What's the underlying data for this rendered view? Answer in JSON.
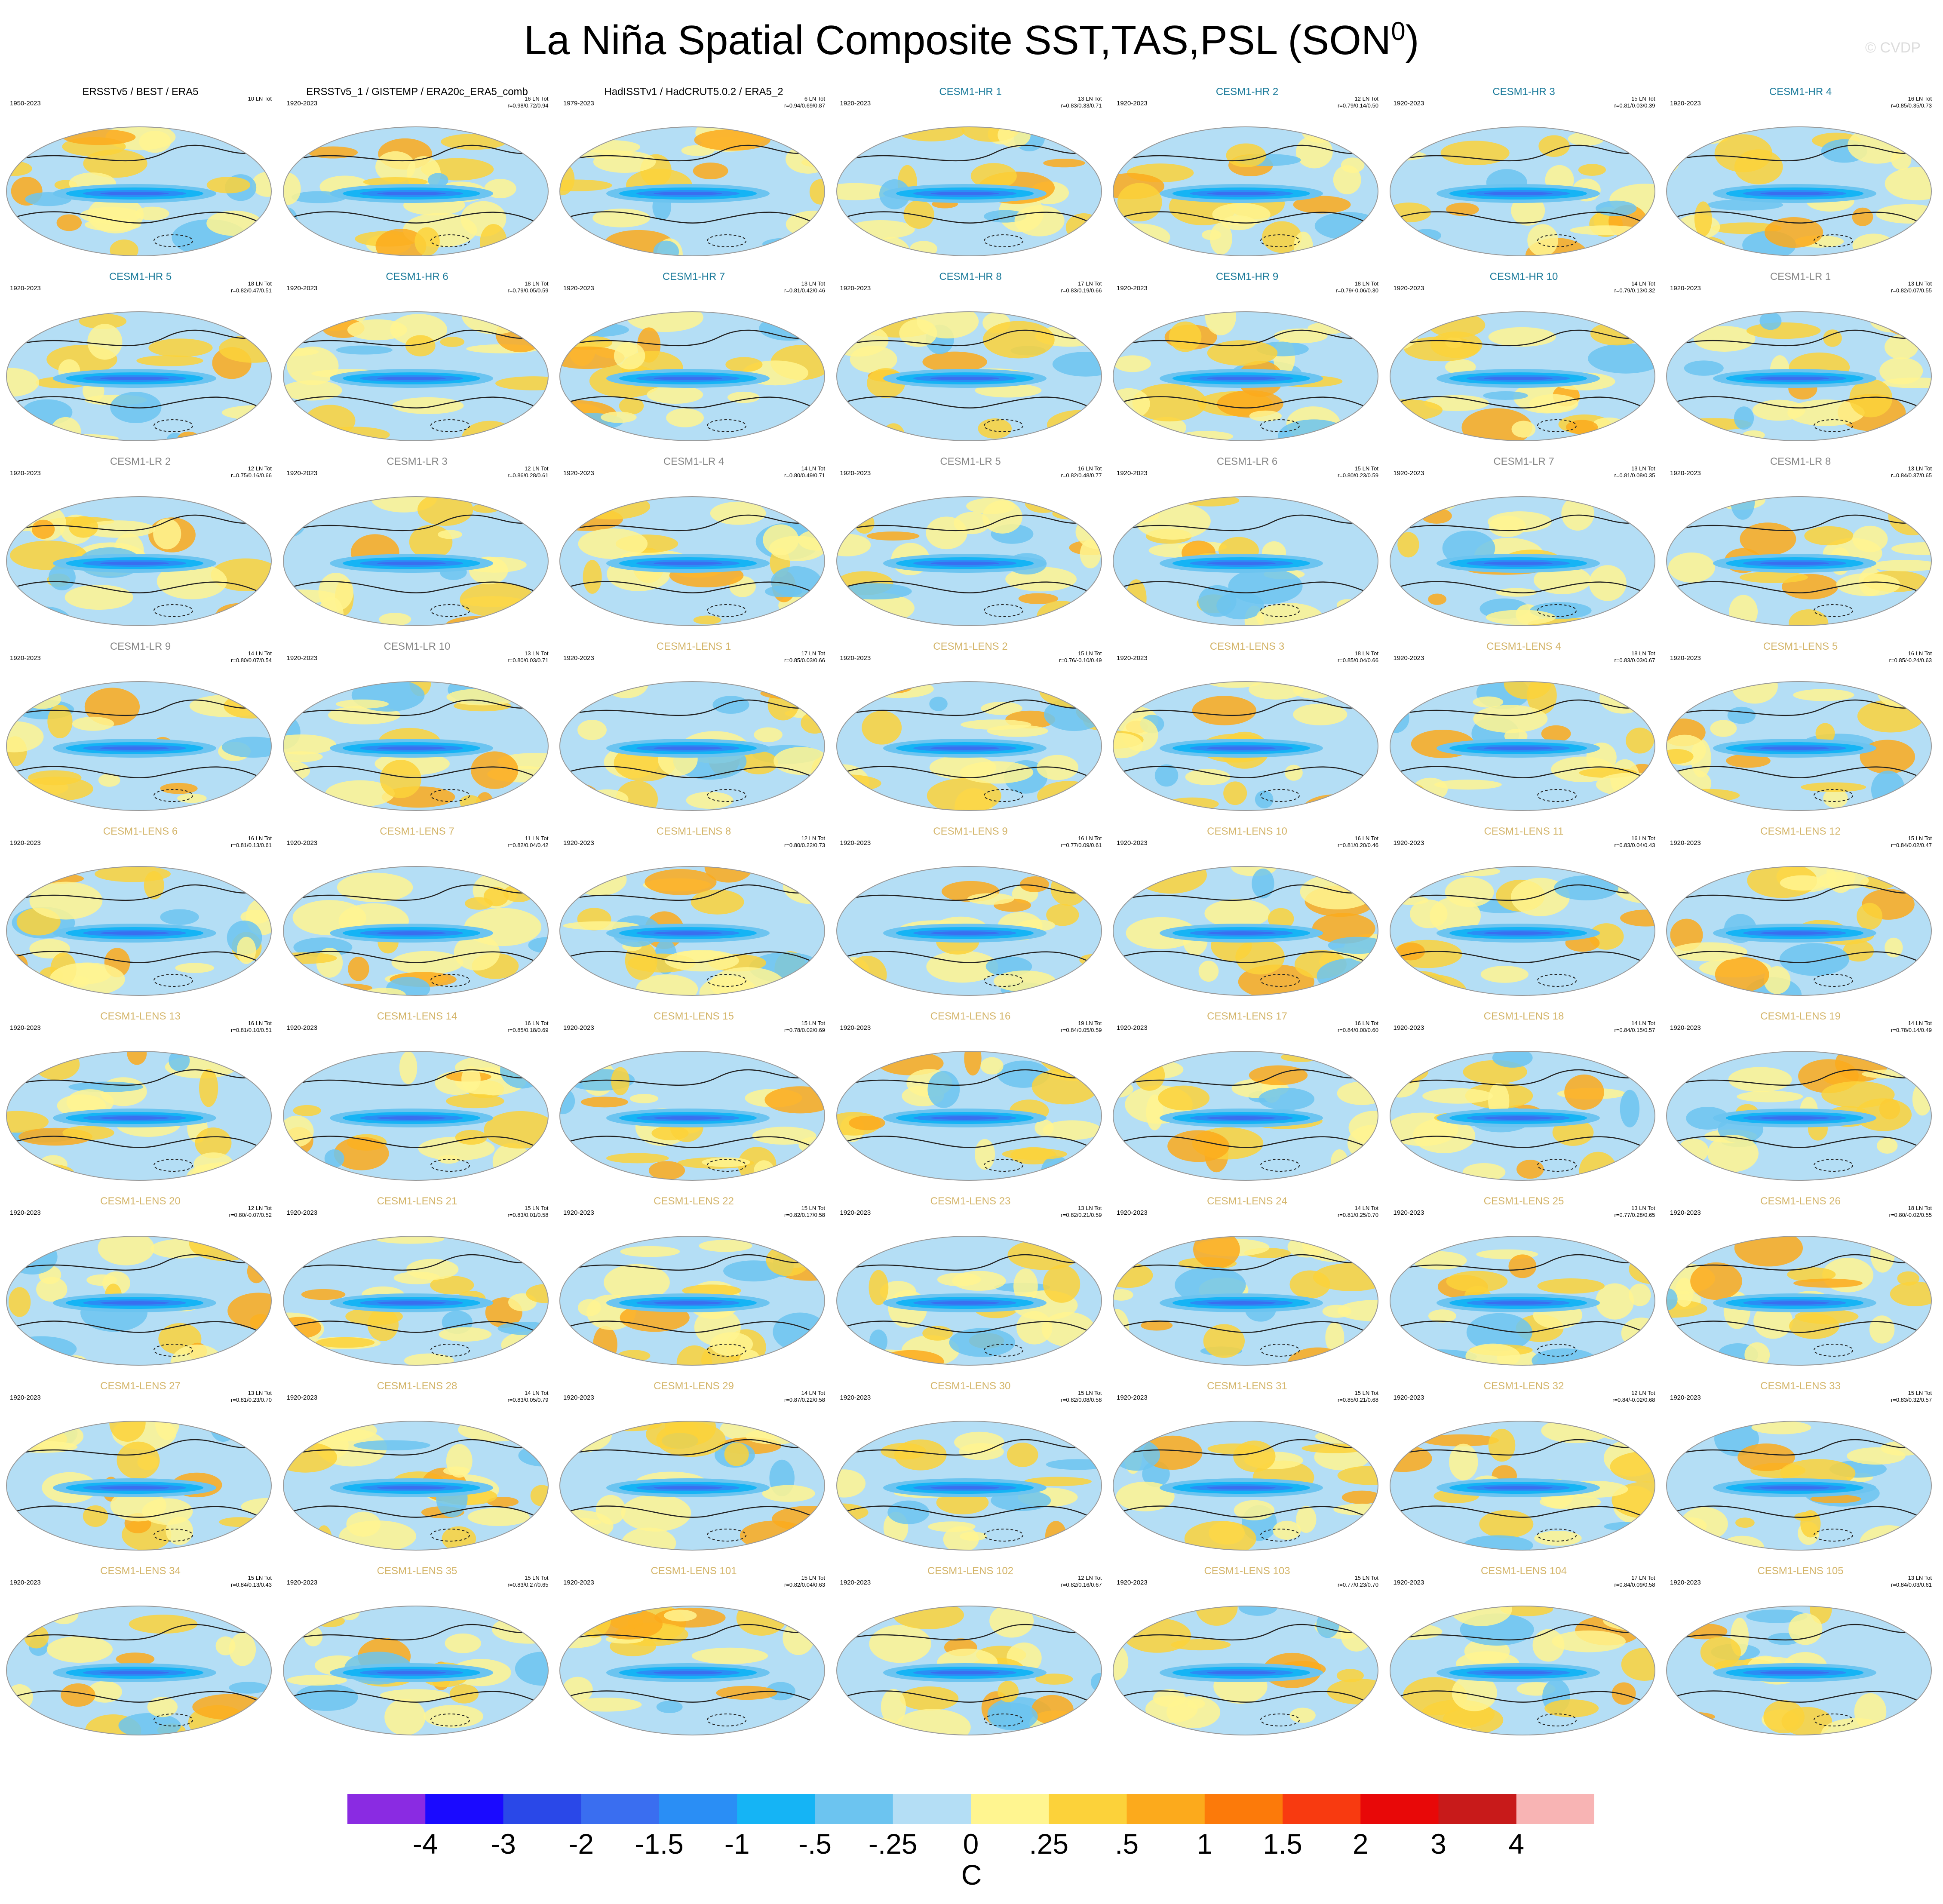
{
  "figure": {
    "title": "La Niña Spatial Composite SST,TAS,PSL (SON",
    "title_sup": "0",
    "title_close": ")",
    "copyright": "© CVDP",
    "units": "C"
  },
  "colors": {
    "obs_title": "#000000",
    "hr_title": "#1a7a9a",
    "lr_title": "#888888",
    "lens_title": "#d4b56a"
  },
  "colorbar": {
    "colors": [
      "#8a2be2",
      "#1a0aff",
      "#2a48e8",
      "#3a6ef0",
      "#2a8ef5",
      "#15b4f5",
      "#6cc4f0",
      "#b4def5",
      "#fff590",
      "#fcd23a",
      "#fcaa1c",
      "#fc7a0a",
      "#f83a10",
      "#e80808",
      "#c81a1a",
      "#f8b4b4"
    ],
    "labels": [
      "-4",
      "-3",
      "-2",
      "-1.5",
      "-1",
      "-.5",
      "-.25",
      "0",
      ".25",
      ".5",
      "1",
      "1.5",
      "2",
      "3",
      "4"
    ]
  },
  "panels": [
    {
      "title": "ERSSTv5 / BEST / ERA5",
      "years": "1950-2023",
      "stats": "10 LN Tot",
      "group": "obs"
    },
    {
      "title": "ERSSTv5_1 / GISTEMP / ERA20c_ERA5_comb",
      "years": "1920-2023",
      "stats": "16 LN Tot\nr=0.98/0.72/0.94",
      "group": "obs"
    },
    {
      "title": "HadISSTv1 / HadCRUT5.0.2 / ERA5_2",
      "years": "1979-2023",
      "stats": "6 LN Tot\nr=0.94/0.69/0.87",
      "group": "obs"
    },
    {
      "title": "CESM1-HR 1",
      "years": "1920-2023",
      "stats": "13 LN Tot\nr=0.83/0.33/0.71",
      "group": "hr"
    },
    {
      "title": "CESM1-HR 2",
      "years": "1920-2023",
      "stats": "12 LN Tot\nr=0.79/0.14/0.50",
      "group": "hr"
    },
    {
      "title": "CESM1-HR 3",
      "years": "1920-2023",
      "stats": "15 LN Tot\nr=0.81/0.03/0.39",
      "group": "hr"
    },
    {
      "title": "CESM1-HR 4",
      "years": "1920-2023",
      "stats": "16 LN Tot\nr=0.85/0.35/0.73",
      "group": "hr"
    },
    {
      "title": "CESM1-HR 5",
      "years": "1920-2023",
      "stats": "18 LN Tot\nr=0.82/0.47/0.51",
      "group": "hr"
    },
    {
      "title": "CESM1-HR 6",
      "years": "1920-2023",
      "stats": "18 LN Tot\nr=0.79/0.05/0.59",
      "group": "hr"
    },
    {
      "title": "CESM1-HR 7",
      "years": "1920-2023",
      "stats": "13 LN Tot\nr=0.81/0.42/0.46",
      "group": "hr"
    },
    {
      "title": "CESM1-HR 8",
      "years": "1920-2023",
      "stats": "17 LN Tot\nr=0.83/0.19/0.66",
      "group": "hr"
    },
    {
      "title": "CESM1-HR 9",
      "years": "1920-2023",
      "stats": "18 LN Tot\nr=0.79/-0.06/0.30",
      "group": "hr"
    },
    {
      "title": "CESM1-HR 10",
      "years": "1920-2023",
      "stats": "14 LN Tot\nr=0.79/0.13/0.32",
      "group": "hr"
    },
    {
      "title": "CESM1-LR 1",
      "years": "1920-2023",
      "stats": "13 LN Tot\nr=0.82/0.07/0.55",
      "group": "lr"
    },
    {
      "title": "CESM1-LR 2",
      "years": "1920-2023",
      "stats": "12 LN Tot\nr=0.75/0.16/0.66",
      "group": "lr"
    },
    {
      "title": "CESM1-LR 3",
      "years": "1920-2023",
      "stats": "12 LN Tot\nr=0.86/0.28/0.61",
      "group": "lr"
    },
    {
      "title": "CESM1-LR 4",
      "years": "1920-2023",
      "stats": "14 LN Tot\nr=0.80/0.49/0.71",
      "group": "lr"
    },
    {
      "title": "CESM1-LR 5",
      "years": "1920-2023",
      "stats": "16 LN Tot\nr=0.82/0.48/0.77",
      "group": "lr"
    },
    {
      "title": "CESM1-LR 6",
      "years": "1920-2023",
      "stats": "15 LN Tot\nr=0.80/0.23/0.59",
      "group": "lr"
    },
    {
      "title": "CESM1-LR 7",
      "years": "1920-2023",
      "stats": "13 LN Tot\nr=0.81/0.08/0.35",
      "group": "lr"
    },
    {
      "title": "CESM1-LR 8",
      "years": "1920-2023",
      "stats": "13 LN Tot\nr=0.84/0.37/0.65",
      "group": "lr"
    },
    {
      "title": "CESM1-LR 9",
      "years": "1920-2023",
      "stats": "14 LN Tot\nr=0.80/0.07/0.54",
      "group": "lr"
    },
    {
      "title": "CESM1-LR 10",
      "years": "1920-2023",
      "stats": "13 LN Tot\nr=0.80/0.03/0.71",
      "group": "lr"
    },
    {
      "title": "CESM1-LENS 1",
      "years": "1920-2023",
      "stats": "17 LN Tot\nr=0.85/0.03/0.66",
      "group": "lens"
    },
    {
      "title": "CESM1-LENS 2",
      "years": "1920-2023",
      "stats": "15 LN Tot\nr=0.76/-0.10/0.49",
      "group": "lens"
    },
    {
      "title": "CESM1-LENS 3",
      "years": "1920-2023",
      "stats": "18 LN Tot\nr=0.85/0.04/0.66",
      "group": "lens"
    },
    {
      "title": "CESM1-LENS 4",
      "years": "1920-2023",
      "stats": "18 LN Tot\nr=0.83/0.03/0.67",
      "group": "lens"
    },
    {
      "title": "CESM1-LENS 5",
      "years": "1920-2023",
      "stats": "16 LN Tot\nr=0.85/-0.24/0.63",
      "group": "lens"
    },
    {
      "title": "CESM1-LENS 6",
      "years": "1920-2023",
      "stats": "16 LN Tot\nr=0.81/0.13/0.61",
      "group": "lens"
    },
    {
      "title": "CESM1-LENS 7",
      "years": "1920-2023",
      "stats": "11 LN Tot\nr=0.82/0.04/0.42",
      "group": "lens"
    },
    {
      "title": "CESM1-LENS 8",
      "years": "1920-2023",
      "stats": "12 LN Tot\nr=0.80/0.22/0.73",
      "group": "lens"
    },
    {
      "title": "CESM1-LENS 9",
      "years": "1920-2023",
      "stats": "16 LN Tot\nr=0.77/0.09/0.61",
      "group": "lens"
    },
    {
      "title": "CESM1-LENS 10",
      "years": "1920-2023",
      "stats": "16 LN Tot\nr=0.81/0.20/0.46",
      "group": "lens"
    },
    {
      "title": "CESM1-LENS 11",
      "years": "1920-2023",
      "stats": "16 LN Tot\nr=0.83/0.04/0.43",
      "group": "lens"
    },
    {
      "title": "CESM1-LENS 12",
      "years": "1920-2023",
      "stats": "15 LN Tot\nr=0.84/0.02/0.47",
      "group": "lens"
    },
    {
      "title": "CESM1-LENS 13",
      "years": "1920-2023",
      "stats": "16 LN Tot\nr=0.81/0.10/0.51",
      "group": "lens"
    },
    {
      "title": "CESM1-LENS 14",
      "years": "1920-2023",
      "stats": "16 LN Tot\nr=0.85/0.18/0.69",
      "group": "lens"
    },
    {
      "title": "CESM1-LENS 15",
      "years": "1920-2023",
      "stats": "15 LN Tot\nr=0.78/0.02/0.69",
      "group": "lens"
    },
    {
      "title": "CESM1-LENS 16",
      "years": "1920-2023",
      "stats": "19 LN Tot\nr=0.84/0.05/0.59",
      "group": "lens"
    },
    {
      "title": "CESM1-LENS 17",
      "years": "1920-2023",
      "stats": "16 LN Tot\nr=0.84/0.00/0.60",
      "group": "lens"
    },
    {
      "title": "CESM1-LENS 18",
      "years": "1920-2023",
      "stats": "14 LN Tot\nr=0.84/0.15/0.57",
      "group": "lens"
    },
    {
      "title": "CESM1-LENS 19",
      "years": "1920-2023",
      "stats": "14 LN Tot\nr=0.78/0.14/0.49",
      "group": "lens"
    },
    {
      "title": "CESM1-LENS 20",
      "years": "1920-2023",
      "stats": "12 LN Tot\nr=0.80/-0.07/0.52",
      "group": "lens"
    },
    {
      "title": "CESM1-LENS 21",
      "years": "1920-2023",
      "stats": "15 LN Tot\nr=0.83/0.01/0.58",
      "group": "lens"
    },
    {
      "title": "CESM1-LENS 22",
      "years": "1920-2023",
      "stats": "15 LN Tot\nr=0.82/0.17/0.58",
      "group": "lens"
    },
    {
      "title": "CESM1-LENS 23",
      "years": "1920-2023",
      "stats": "13 LN Tot\nr=0.82/0.21/0.59",
      "group": "lens"
    },
    {
      "title": "CESM1-LENS 24",
      "years": "1920-2023",
      "stats": "14 LN Tot\nr=0.81/0.25/0.70",
      "group": "lens"
    },
    {
      "title": "CESM1-LENS 25",
      "years": "1920-2023",
      "stats": "13 LN Tot\nr=0.77/0.28/0.65",
      "group": "lens"
    },
    {
      "title": "CESM1-LENS 26",
      "years": "1920-2023",
      "stats": "18 LN Tot\nr=0.80/-0.02/0.55",
      "group": "lens"
    },
    {
      "title": "CESM1-LENS 27",
      "years": "1920-2023",
      "stats": "13 LN Tot\nr=0.81/0.23/0.70",
      "group": "lens"
    },
    {
      "title": "CESM1-LENS 28",
      "years": "1920-2023",
      "stats": "14 LN Tot\nr=0.83/0.05/0.79",
      "group": "lens"
    },
    {
      "title": "CESM1-LENS 29",
      "years": "1920-2023",
      "stats": "14 LN Tot\nr=0.87/0.22/0.58",
      "group": "lens"
    },
    {
      "title": "CESM1-LENS 30",
      "years": "1920-2023",
      "stats": "15 LN Tot\nr=0.82/0.08/0.58",
      "group": "lens"
    },
    {
      "title": "CESM1-LENS 31",
      "years": "1920-2023",
      "stats": "15 LN Tot\nr=0.85/0.21/0.68",
      "group": "lens"
    },
    {
      "title": "CESM1-LENS 32",
      "years": "1920-2023",
      "stats": "12 LN Tot\nr=0.84/-0.02/0.68",
      "group": "lens"
    },
    {
      "title": "CESM1-LENS 33",
      "years": "1920-2023",
      "stats": "15 LN Tot\nr=0.83/0.32/0.57",
      "group": "lens"
    },
    {
      "title": "CESM1-LENS 34",
      "years": "1920-2023",
      "stats": "15 LN Tot\nr=0.84/0.13/0.43",
      "group": "lens"
    },
    {
      "title": "CESM1-LENS 35",
      "years": "1920-2023",
      "stats": "15 LN Tot\nr=0.83/0.27/0.65",
      "group": "lens"
    },
    {
      "title": "CESM1-LENS 101",
      "years": "1920-2023",
      "stats": "15 LN Tot\nr=0.82/0.04/0.63",
      "group": "lens"
    },
    {
      "title": "CESM1-LENS 102",
      "years": "1920-2023",
      "stats": "12 LN Tot\nr=0.82/0.16/0.67",
      "group": "lens"
    },
    {
      "title": "CESM1-LENS 103",
      "years": "1920-2023",
      "stats": "15 LN Tot\nr=0.77/0.23/0.70",
      "group": "lens"
    },
    {
      "title": "CESM1-LENS 104",
      "years": "1920-2023",
      "stats": "17 LN Tot\nr=0.84/0.09/0.58",
      "group": "lens"
    },
    {
      "title": "CESM1-LENS 105",
      "years": "1920-2023",
      "stats": "13 LN Tot\nr=0.84/0.03/0.61",
      "group": "lens"
    }
  ]
}
